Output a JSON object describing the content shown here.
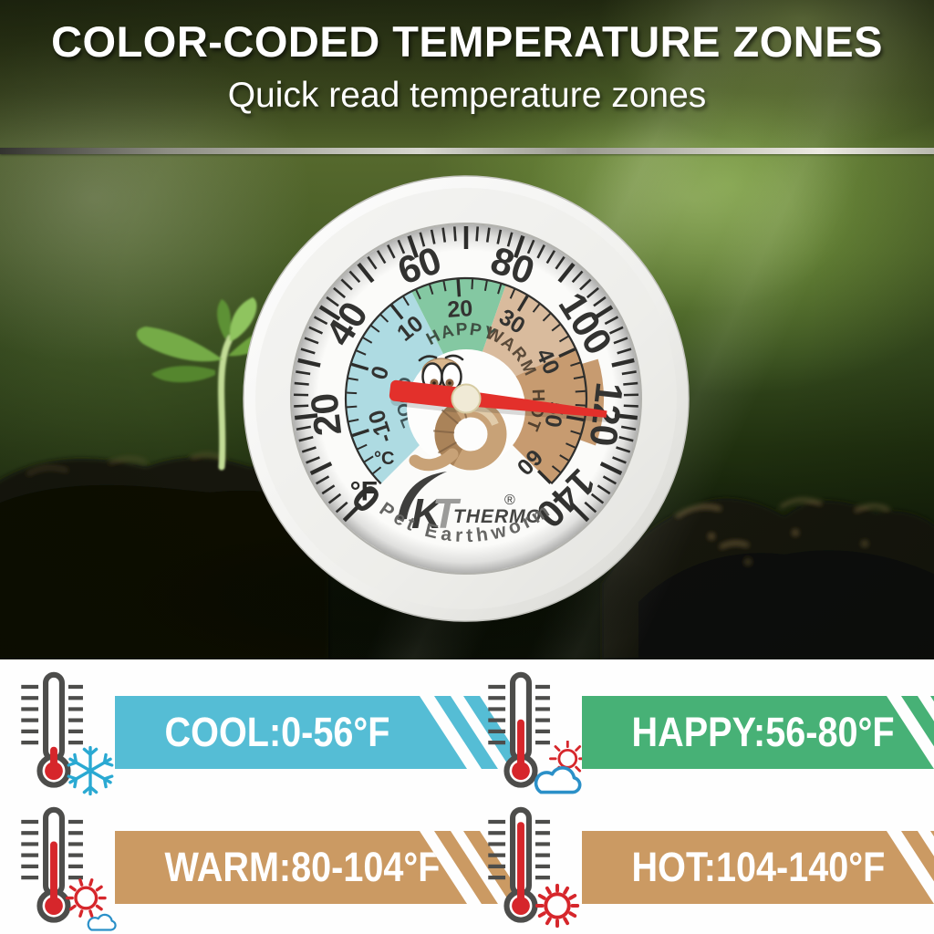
{
  "header": {
    "title": "COLOR-CODED TEMPERATURE ZONES",
    "subtitle": "Quick read temperature zones"
  },
  "gauge": {
    "brand_mark": "KT",
    "brand_name": "THERMO",
    "registered": "®",
    "tagline": "Pet Earthworm",
    "fahrenheit_unit": "°F",
    "celsius_unit": "°C",
    "f_scale": {
      "min": 0,
      "max": 140,
      "start_angle": 225,
      "sweep": 270,
      "label_step": 20,
      "major_step": 10,
      "minor_step": 2
    },
    "c_scale": {
      "min": -10,
      "max": 60,
      "label_step": 10,
      "minor_step": 2,
      "minor_from": -16
    },
    "zones": [
      {
        "label": "COOL",
        "f_start": 0,
        "f_end": 56,
        "color": "#aedbe2",
        "label_color": "#41565a"
      },
      {
        "label": "HAPPY",
        "f_start": 56,
        "f_end": 80,
        "color": "#84c8a2",
        "label_color": "#3f4f43"
      },
      {
        "label": "WARM",
        "f_start": 80,
        "f_end": 104,
        "color": "#d9bb9d",
        "label_color": "#5a4a39"
      },
      {
        "label": "HOT",
        "f_start": 104,
        "f_end": 140,
        "color": "#c79b70",
        "label_color": "#53412f"
      }
    ],
    "needle": {
      "value_f": 120,
      "color": "#e3302b",
      "hub_color": "#f0ead6"
    }
  },
  "legend": {
    "rows": [
      {
        "id": "cool",
        "label": "COOL:0-56°F",
        "banner_color": "#55bdd5",
        "icon": "snowflake",
        "thermo_level": 0.12
      },
      {
        "id": "happy",
        "label": "HAPPY:56-80°F",
        "banner_color": "#47b176",
        "icon": "sun-behind-cloud",
        "thermo_level": 0.5
      },
      {
        "id": "warm",
        "label": "WARM:80-104°F",
        "banner_color": "#cb9a63",
        "icon": "sun-with-cloud",
        "thermo_level": 0.68
      },
      {
        "id": "hot",
        "label": "HOT:104-140°F",
        "banner_color": "#cb9a63",
        "icon": "sun",
        "thermo_level": 0.95
      }
    ]
  }
}
